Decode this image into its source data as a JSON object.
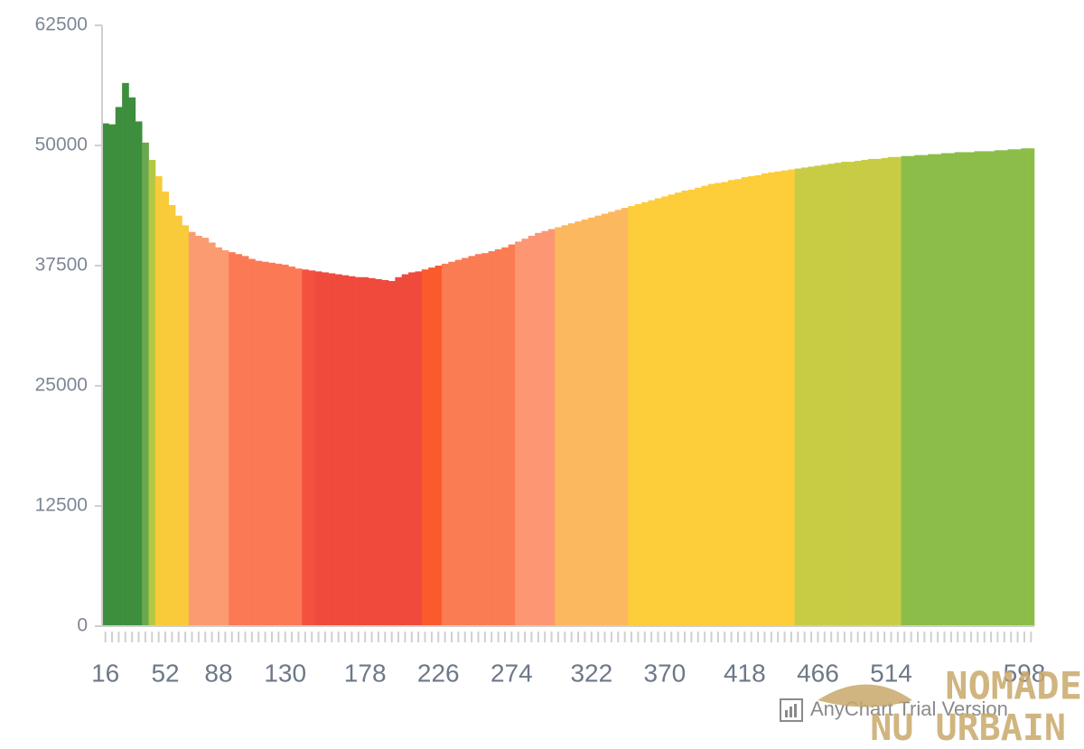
{
  "chart_data": {
    "type": "bar",
    "categories": [
      16,
      null,
      null,
      null,
      null,
      null,
      null,
      null,
      null,
      52,
      null,
      null,
      null,
      null,
      null,
      null,
      null,
      88,
      null,
      null,
      null,
      null,
      null,
      null,
      null,
      null,
      null,
      130,
      null,
      null,
      null,
      null,
      null,
      null,
      null,
      null,
      null,
      null,
      null,
      178,
      null,
      null,
      null,
      null,
      null,
      null,
      null,
      null,
      null,
      null,
      226,
      null,
      null,
      null,
      null,
      null,
      null,
      null,
      null,
      null,
      null,
      274,
      null,
      null,
      null,
      null,
      null,
      null,
      null,
      null,
      null,
      null,
      null,
      322,
      null,
      null,
      null,
      null,
      null,
      null,
      null,
      null,
      null,
      null,
      370,
      null,
      null,
      null,
      null,
      null,
      null,
      null,
      null,
      null,
      null,
      null,
      418,
      null,
      null,
      null,
      null,
      null,
      null,
      null,
      null,
      null,
      null,
      466,
      null,
      null,
      null,
      null,
      null,
      null,
      null,
      null,
      null,
      null,
      514,
      null,
      null,
      null,
      null,
      null,
      null,
      null,
      null,
      null,
      null,
      null,
      null,
      null,
      null,
      null,
      null,
      null,
      null,
      null,
      598,
      null
    ],
    "values": [
      52300,
      52200,
      54000,
      56500,
      55000,
      52500,
      50300,
      48500,
      46800,
      45200,
      43800,
      42700,
      41700,
      41000,
      40600,
      40400,
      39900,
      39400,
      39100,
      38900,
      38700,
      38500,
      38200,
      38000,
      37900,
      37800,
      37700,
      37600,
      37400,
      37200,
      37100,
      37000,
      36900,
      36800,
      36700,
      36600,
      36500,
      36400,
      36300,
      36300,
      36200,
      36100,
      36000,
      35900,
      36300,
      36600,
      36800,
      36900,
      37100,
      37300,
      37500,
      37700,
      37900,
      38100,
      38300,
      38500,
      38700,
      38800,
      39000,
      39200,
      39400,
      39700,
      40000,
      40300,
      40600,
      40900,
      41100,
      41300,
      41500,
      41700,
      41900,
      42100,
      42300,
      42500,
      42700,
      42900,
      43100,
      43300,
      43500,
      43700,
      43900,
      44100,
      44300,
      44500,
      44700,
      44900,
      45100,
      45300,
      45400,
      45600,
      45800,
      46000,
      46100,
      46200,
      46400,
      46500,
      46700,
      46800,
      46900,
      47100,
      47200,
      47300,
      47400,
      47500,
      47600,
      47700,
      47800,
      47900,
      48000,
      48100,
      48200,
      48300,
      48300,
      48400,
      48500,
      48600,
      48600,
      48700,
      48800,
      48800,
      48900,
      48900,
      49000,
      49000,
      49100,
      49100,
      49200,
      49200,
      49300,
      49300,
      49300,
      49400,
      49400,
      49400,
      49500,
      49500,
      49600,
      49600,
      49700,
      49700
    ],
    "colors": [
      "#3d8f3d",
      "#3d8f3d",
      "#3d8f3d",
      "#3d8f3d",
      "#3d8f3d",
      "#3d8f3d",
      "#6aa84f",
      "#b5c842",
      "#f9cb3a",
      "#f9cb3a",
      "#f9cb3a",
      "#f9cb3a",
      "#f9cb3a",
      "#fb9b72",
      "#fb9b72",
      "#fb9b72",
      "#fb9b72",
      "#fb9b72",
      "#fb9b72",
      "#fb7a55",
      "#fb7a55",
      "#fb7a55",
      "#fb7a55",
      "#fb7a55",
      "#fb7a55",
      "#fb7a55",
      "#fb7a55",
      "#fb7a55",
      "#fb7a55",
      "#fb7a55",
      "#f4523e",
      "#f4523e",
      "#ef4a3c",
      "#ef4a3c",
      "#ef4a3c",
      "#ef4a3c",
      "#ef4a3c",
      "#ef4a3c",
      "#ef4a3c",
      "#ef4a3c",
      "#ef4a3c",
      "#ef4a3c",
      "#ef4a3c",
      "#ef4a3c",
      "#ef4a3c",
      "#ef4a3c",
      "#ef4a3c",
      "#ef4a3c",
      "#fb5a2c",
      "#fb5a2c",
      "#fb5a2c",
      "#fb7c52",
      "#fb7c52",
      "#fb7c52",
      "#fb7c52",
      "#fb7c52",
      "#fb7c52",
      "#fb7c52",
      "#fb7c52",
      "#fb7c52",
      "#fb7c52",
      "#fb7c52",
      "#fc9673",
      "#fc9673",
      "#fc9673",
      "#fc9673",
      "#fc9673",
      "#fc9673",
      "#fcb85e",
      "#fcb85e",
      "#fcb85e",
      "#fcb85e",
      "#fcb85e",
      "#fcb85e",
      "#fcb85e",
      "#fcb85e",
      "#fcb85e",
      "#fcb85e",
      "#fcb85e",
      "#fdcd3a",
      "#fdcd3a",
      "#fdcd3a",
      "#fdcd3a",
      "#fdcd3a",
      "#fdcd3a",
      "#fdcd3a",
      "#fdcd3a",
      "#fdcd3a",
      "#fdcd3a",
      "#fdcd3a",
      "#fdcd3a",
      "#fdcd3a",
      "#fdcd3a",
      "#fdcd3a",
      "#fdcd3a",
      "#fdcd3a",
      "#fdcd3a",
      "#fdcd3a",
      "#fdcd3a",
      "#fdcd3a",
      "#fdcd3a",
      "#fdcd3a",
      "#fdcd3a",
      "#fdcd3a",
      "#c8cc45",
      "#c8cc45",
      "#c8cc45",
      "#c8cc45",
      "#c8cc45",
      "#c8cc45",
      "#c8cc45",
      "#c8cc45",
      "#c8cc45",
      "#c8cc45",
      "#c8cc45",
      "#c8cc45",
      "#c8cc45",
      "#c8cc45",
      "#c8cc45",
      "#c8cc45",
      "#8cbd49",
      "#8cbd49",
      "#8cbd49",
      "#8cbd49",
      "#8cbd49",
      "#8cbd49",
      "#8cbd49",
      "#8cbd49",
      "#8cbd49",
      "#8cbd49",
      "#8cbd49",
      "#8cbd49",
      "#8cbd49",
      "#8cbd49",
      "#8cbd49",
      "#8cbd49",
      "#8cbd49",
      "#8cbd49",
      "#8cbd49",
      "#8cbd49"
    ],
    "ylim": [
      0,
      62500
    ],
    "yticks": [
      0,
      12500,
      25000,
      37500,
      50000,
      62500
    ],
    "grid": false
  },
  "watermark": {
    "text": "AnyChart Trial Version"
  },
  "logo": {
    "line1": "NOMADE",
    "line2": "NU URBAIN"
  }
}
